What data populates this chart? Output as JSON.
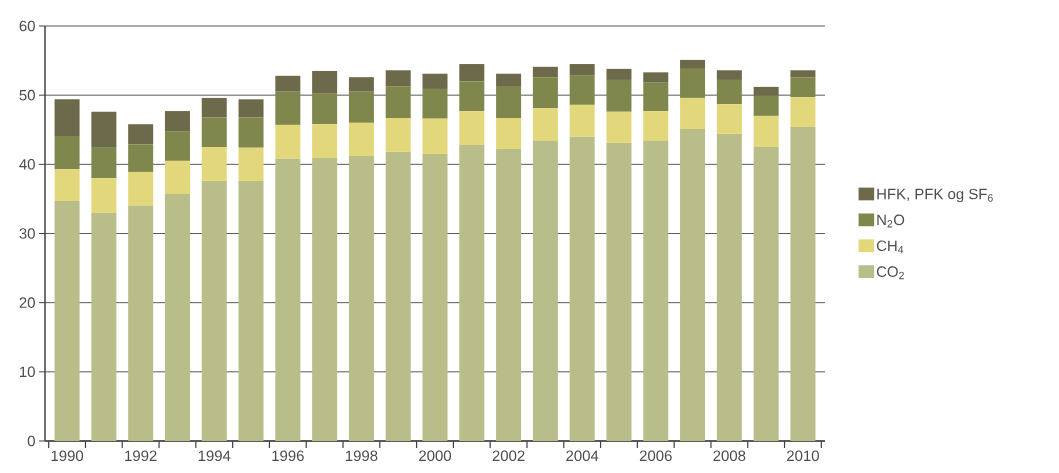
{
  "chart_data": {
    "type": "bar",
    "stacked": true,
    "grid": "y",
    "legend": "right",
    "categories": [
      "1990",
      null,
      "1992",
      null,
      "1994",
      null,
      "1996",
      null,
      "1998",
      null,
      "2000",
      null,
      "2002",
      null,
      "2004",
      null,
      "2006",
      null,
      "2008",
      null,
      "2010"
    ],
    "ylim": [
      0,
      60
    ],
    "yticks": [
      0,
      10,
      20,
      30,
      40,
      50,
      60
    ],
    "series": [
      {
        "name": "CO$_{2}$",
        "color": "#b8bd8a",
        "values": [
          34.7,
          33.0,
          34.0,
          35.7,
          37.6,
          37.6,
          40.8,
          40.9,
          41.2,
          41.8,
          41.5,
          42.8,
          42.2,
          43.4,
          44.0,
          43.1,
          43.4,
          45.1,
          44.4,
          42.5,
          45.4
        ]
      },
      {
        "name": "CH$_{4}$",
        "color": "#e3d77b",
        "values": [
          4.6,
          5.0,
          4.9,
          4.8,
          4.9,
          4.8,
          4.9,
          4.9,
          4.8,
          4.9,
          5.1,
          4.9,
          4.5,
          4.7,
          4.6,
          4.5,
          4.3,
          4.5,
          4.3,
          4.5,
          4.3
        ]
      },
      {
        "name": "N$_{2}$O",
        "color": "#7f874c",
        "values": [
          4.8,
          4.5,
          4.0,
          4.3,
          4.3,
          4.4,
          4.8,
          4.5,
          4.5,
          4.6,
          4.3,
          4.3,
          4.5,
          4.5,
          4.3,
          4.6,
          4.1,
          4.2,
          3.5,
          2.9,
          2.9
        ]
      },
      {
        "name": "HFK, PFK og SF$_{6}$",
        "color": "#6d6a4b",
        "values": [
          5.3,
          5.1,
          2.9,
          2.9,
          2.8,
          2.6,
          2.3,
          3.2,
          2.1,
          2.3,
          2.2,
          2.5,
          1.9,
          1.5,
          1.6,
          1.6,
          1.5,
          1.3,
          1.4,
          1.3,
          1.0
        ]
      }
    ]
  }
}
